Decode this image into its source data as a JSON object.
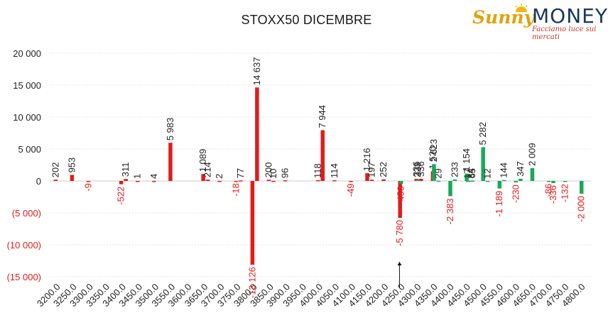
{
  "title": "STOXX50 DICEMBRE",
  "logo": {
    "brand_first": "Sunny",
    "brand_second": "MONEY",
    "tagline": "Facciamo luce sui mercati"
  },
  "colors": {
    "positive_bar": "#1aa85a",
    "negative_bar": "#e31b1b",
    "positive_label": "#222222",
    "negative_label": "#e31b1b",
    "axis_text": "#222222",
    "grid": "#e6e6e6"
  },
  "chart_data": {
    "type": "bar",
    "title": "STOXX50 DICEMBRE",
    "xlabel": "",
    "ylabel": "",
    "ylim": [
      -15000,
      20000
    ],
    "yticks": [
      -15000,
      -10000,
      -5000,
      0,
      5000,
      10000,
      15000,
      20000
    ],
    "ytick_labels": [
      "(15 000)",
      "(10 000)",
      "(5 000)",
      "0",
      "5 000",
      "10 000",
      "15 000",
      "20 000"
    ],
    "grid": true,
    "legend": "none",
    "categories": [
      "3200.0",
      "3250.0",
      "3300.0",
      "3350.0",
      "3400.0",
      "3450.0",
      "3500.0",
      "3550.0",
      "3600.0",
      "3650.0",
      "3700.0",
      "3750.0",
      "3800.0",
      "3850.0",
      "3900.0",
      "3950.0",
      "4000.0",
      "4050.0",
      "4100.0",
      "4150.0",
      "4200.0",
      "4250.0",
      "4300.0",
      "4350.0",
      "4400.0",
      "4450.0",
      "4500.0",
      "4550.0",
      "4600.0",
      "4650.0",
      "4700.0",
      "4750.0",
      "4800.0"
    ],
    "series": [
      {
        "color": "#e31b1b",
        "values": [
          202,
          953,
          -9,
          null,
          -522,
          1,
          4,
          5983,
          null,
          1089,
          2,
          -18,
          -13126,
          200,
          96,
          null,
          118,
          114,
          -49,
          1216,
          252,
          -5780,
          336,
          1520,
          null,
          null,
          null,
          null,
          null,
          null,
          null,
          null,
          null
        ]
      },
      {
        "color": "#e31b1b",
        "values": [
          null,
          null,
          null,
          null,
          311,
          null,
          null,
          null,
          null,
          214,
          null,
          77,
          14637,
          10,
          null,
          null,
          7944,
          null,
          null,
          197,
          null,
          null,
          336,
          null,
          null,
          null,
          null,
          null,
          null,
          null,
          null,
          null,
          null
        ]
      },
      {
        "color": "#1aa85a",
        "values": [
          null,
          null,
          null,
          null,
          null,
          null,
          null,
          null,
          null,
          null,
          null,
          null,
          null,
          null,
          null,
          null,
          null,
          null,
          null,
          null,
          null,
          -450,
          223,
          2623,
          -2383,
          1154,
          5282,
          -1189,
          -230,
          2009,
          -86,
          -132,
          -2000
        ]
      },
      {
        "color": "#1aa85a",
        "values": [
          null,
          null,
          null,
          null,
          null,
          null,
          null,
          null,
          null,
          null,
          null,
          null,
          null,
          null,
          null,
          null,
          null,
          null,
          null,
          null,
          null,
          null,
          null,
          29,
          233,
          34,
          12,
          144,
          347,
          null,
          -336,
          null,
          null
        ]
      },
      {
        "color": "#1aa85a",
        "values": [
          null,
          null,
          null,
          null,
          null,
          null,
          null,
          null,
          null,
          null,
          null,
          null,
          null,
          null,
          null,
          null,
          null,
          null,
          null,
          null,
          null,
          null,
          null,
          null,
          null,
          17,
          null,
          null,
          null,
          null,
          null,
          null,
          null
        ]
      },
      {
        "color": "#1aa85a",
        "values": [
          null,
          null,
          null,
          null,
          null,
          null,
          null,
          null,
          null,
          null,
          null,
          null,
          null,
          null,
          null,
          null,
          null,
          null,
          null,
          null,
          null,
          null,
          null,
          null,
          null,
          65,
          null,
          null,
          null,
          null,
          null,
          null,
          null
        ]
      }
    ],
    "annotations": [
      {
        "type": "arrow",
        "x_category": "4250.0",
        "direction": "up",
        "from_value": -15000,
        "to_value": -12000
      }
    ]
  }
}
